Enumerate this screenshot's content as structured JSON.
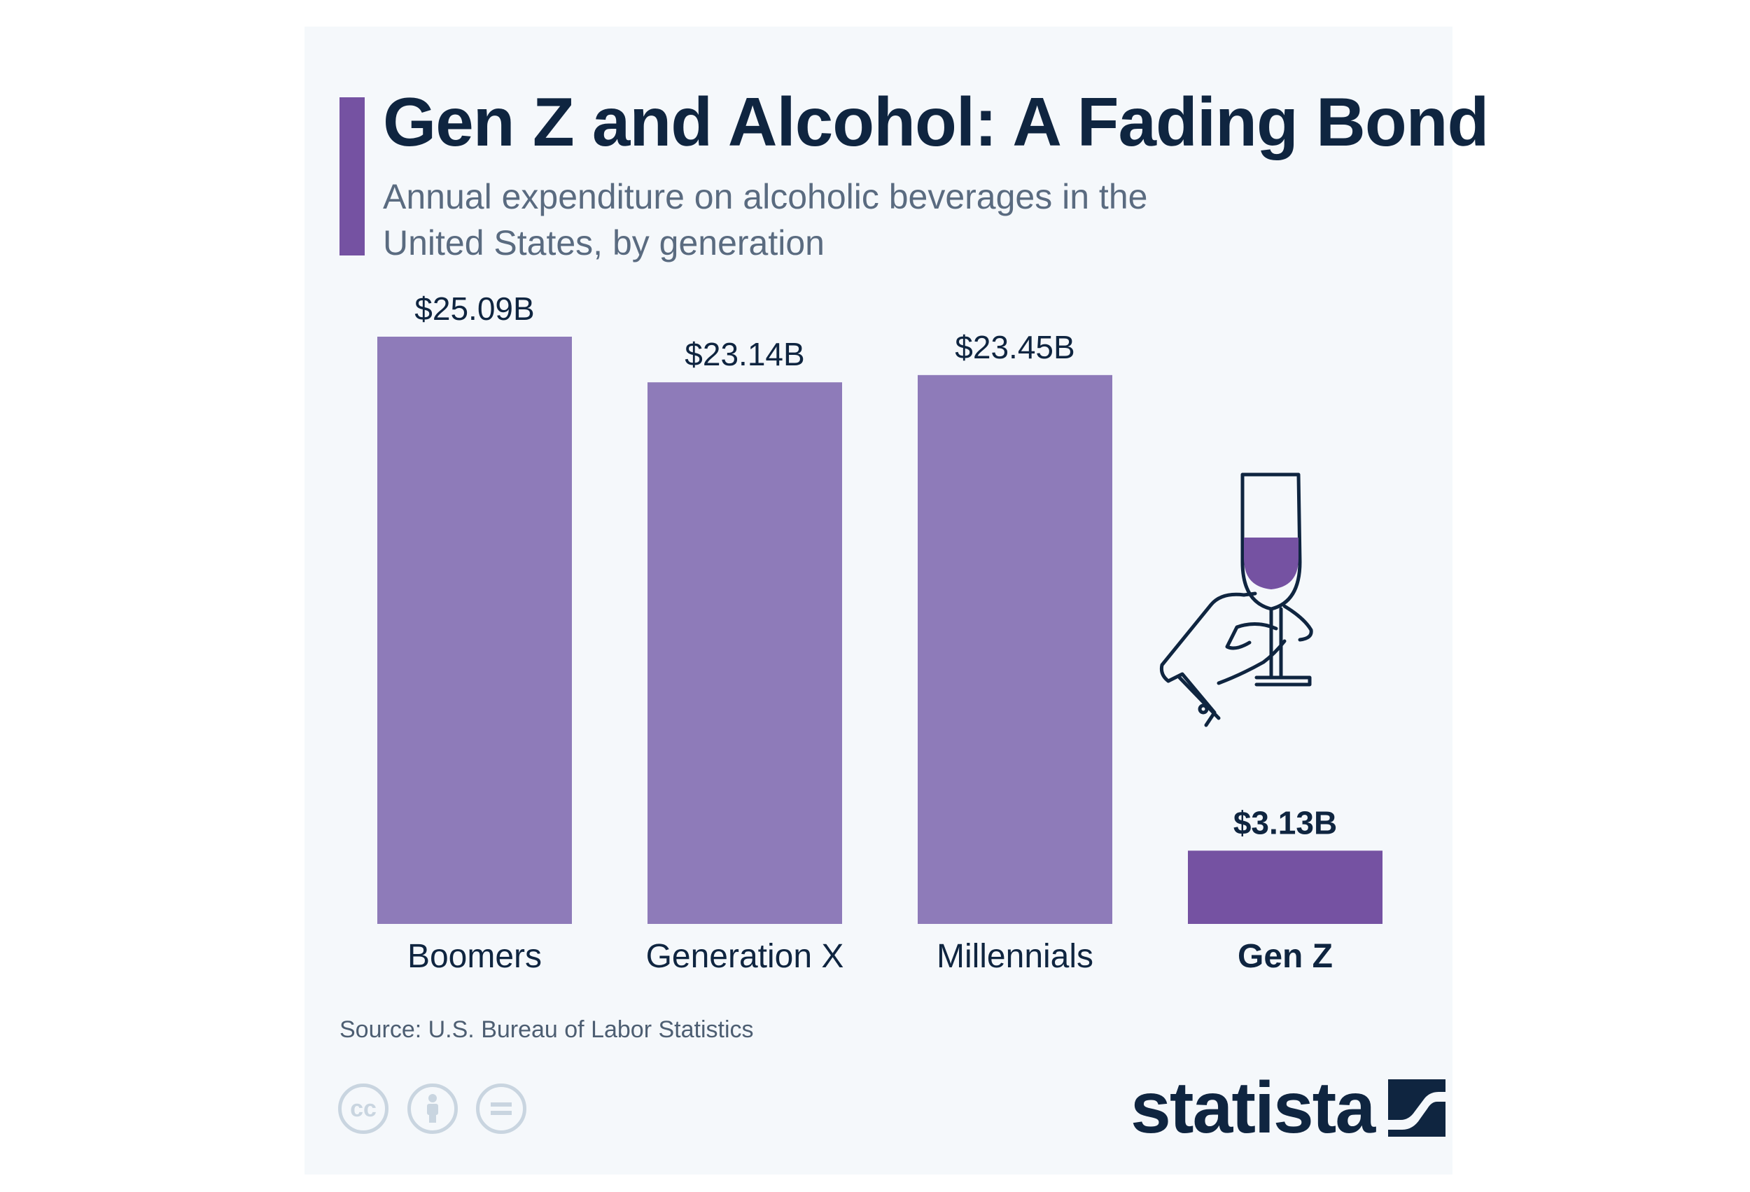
{
  "title": "Gen Z and Alcohol: A Fading Bond",
  "subtitle": "Annual expenditure on alcoholic beverages in the United States, by generation",
  "source": "Source: U.S. Bureau of Labor Statistics",
  "brand": "statista",
  "license_icons": [
    "cc-icon",
    "attribution-icon",
    "no-derivatives-icon"
  ],
  "colors": {
    "bar": "#8e7bb9",
    "bar_highlight": "#7552a2",
    "text_dark": "#0f2540",
    "text_muted": "#5a6b80",
    "background": "#f5f8fb"
  },
  "chart_data": {
    "type": "bar",
    "title": "Gen Z and Alcohol: A Fading Bond",
    "subtitle": "Annual expenditure on alcoholic beverages in the United States, by generation",
    "xlabel": "",
    "ylabel": "",
    "ylim": [
      0,
      25.09
    ],
    "grid": false,
    "categories": [
      "Boomers",
      "Generation X",
      "Millennials",
      "Gen Z"
    ],
    "values": [
      25.09,
      23.14,
      23.45,
      3.13
    ],
    "data_labels": [
      "$25.09B",
      "$23.14B",
      "$23.45B",
      "$3.13B"
    ],
    "unit": "billion U.S. dollars",
    "highlight": "Gen Z"
  }
}
